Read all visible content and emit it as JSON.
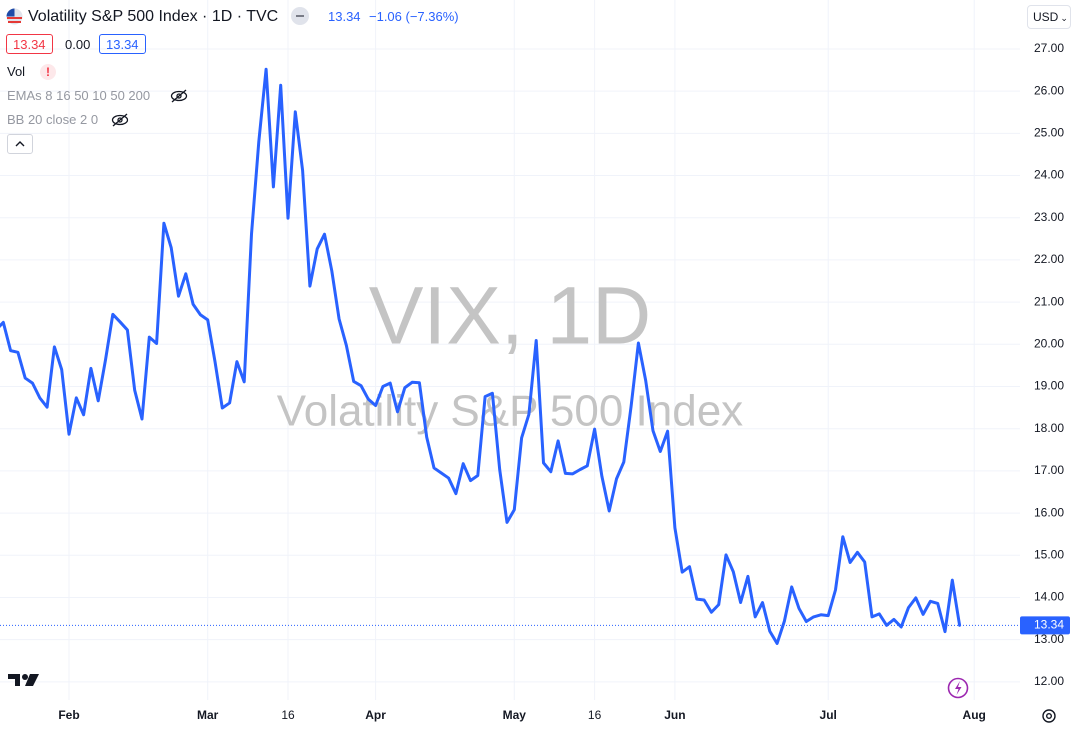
{
  "header": {
    "title": "Volatility S&P 500 Index · 1D · TVC",
    "last": "13.34",
    "change": "−1.06 (−7.36%)",
    "ohlc": [
      "13.34",
      "0.00",
      "13.34"
    ],
    "indicators": [
      "Vol",
      "EMAs 8 16 50 10 50 200",
      "BB 20 close 2 0"
    ],
    "currency": "USD",
    "watermark": [
      "VIX, 1D",
      "Volatility S&P 500 Index"
    ]
  },
  "chart_data": {
    "type": "line",
    "categories": [
      null,
      null,
      null,
      null,
      null,
      null,
      null,
      null,
      null,
      null,
      "Feb",
      null,
      null,
      null,
      null,
      null,
      null,
      null,
      null,
      null,
      null,
      null,
      null,
      null,
      null,
      null,
      null,
      null,
      null,
      "Mar",
      null,
      null,
      null,
      null,
      null,
      null,
      null,
      null,
      null,
      null,
      "16",
      null,
      null,
      null,
      null,
      null,
      null,
      null,
      null,
      null,
      null,
      null,
      "Apr",
      null,
      null,
      null,
      null,
      null,
      null,
      null,
      null,
      null,
      null,
      null,
      null,
      null,
      null,
      null,
      null,
      null,
      null,
      "May",
      null,
      null,
      null,
      null,
      null,
      null,
      null,
      null,
      null,
      null,
      "16",
      null,
      null,
      null,
      null,
      null,
      null,
      null,
      null,
      null,
      null,
      "Jun",
      null,
      null,
      null,
      null,
      null,
      null,
      null,
      null,
      null,
      null,
      null,
      null,
      null,
      null,
      null,
      null,
      null,
      null,
      null,
      null,
      "Jul",
      null,
      null,
      null,
      null,
      null,
      null,
      null,
      null,
      null,
      null,
      null,
      null,
      null,
      null,
      null,
      null,
      null,
      null,
      null,
      "Aug"
    ],
    "series": [
      {
        "name": "VIX",
        "color": "#2962ff",
        "values": [
          20.34,
          20.52,
          19.85,
          19.81,
          19.2,
          19.08,
          18.73,
          18.51,
          19.94,
          19.4,
          17.87,
          18.73,
          18.33,
          19.43,
          18.66,
          19.63,
          20.71,
          20.53,
          20.34,
          18.91,
          18.23,
          20.17,
          20.02,
          22.87,
          22.29,
          21.14,
          21.67,
          20.95,
          20.7,
          20.58,
          19.59,
          18.49,
          18.61,
          19.59,
          19.11,
          22.61,
          24.8,
          26.52,
          23.73,
          26.14,
          22.99,
          25.51,
          24.12,
          21.38,
          22.26,
          22.61,
          21.74,
          20.6,
          19.97,
          19.12,
          19.02,
          18.7,
          18.55,
          19.0,
          19.08,
          18.4,
          18.97,
          19.1,
          19.09,
          17.8,
          17.07,
          16.95,
          16.83,
          16.46,
          17.17,
          16.77,
          16.89,
          18.76,
          18.84,
          17.03,
          15.78,
          16.08,
          17.78,
          18.34,
          20.09,
          17.19,
          16.98,
          17.71,
          16.94,
          16.93,
          17.03,
          17.12,
          17.99,
          16.87,
          16.05,
          16.81,
          17.21,
          18.53,
          20.03,
          19.14,
          17.95,
          17.46,
          17.94,
          15.65,
          14.6,
          14.73,
          13.96,
          13.94,
          13.65,
          13.83,
          15.01,
          14.61,
          13.88,
          14.5,
          13.54,
          13.88,
          13.2,
          12.91,
          13.44,
          14.25,
          13.74,
          13.43,
          13.54,
          13.59,
          13.57,
          14.18,
          15.44,
          14.83,
          15.07,
          14.84,
          13.54,
          13.61,
          13.34,
          13.48,
          13.3,
          13.76,
          13.99,
          13.6,
          13.91,
          13.86,
          13.19,
          14.41,
          13.34,
          null,
          null
        ]
      }
    ],
    "last_value": 13.34,
    "ylim": [
      11.57,
      28.16
    ],
    "yticks": [
      {
        "value": 12,
        "label": "12.00"
      },
      {
        "value": 13,
        "label": "13.00"
      },
      {
        "value": 14,
        "label": "14.00"
      },
      {
        "value": 15,
        "label": "15.00"
      },
      {
        "value": 16,
        "label": "16.00"
      },
      {
        "value": 17,
        "label": "17.00"
      },
      {
        "value": 18,
        "label": "18.00"
      },
      {
        "value": 19,
        "label": "19.00"
      },
      {
        "value": 20,
        "label": "20.00"
      },
      {
        "value": 21,
        "label": "21.00"
      },
      {
        "value": 22,
        "label": "22.00"
      },
      {
        "value": 23,
        "label": "23.00"
      },
      {
        "value": 24,
        "label": "24.00"
      },
      {
        "value": 25,
        "label": "25.00"
      },
      {
        "value": 26,
        "label": "26.00"
      },
      {
        "value": 27,
        "label": "27.00"
      }
    ],
    "grid": true
  }
}
